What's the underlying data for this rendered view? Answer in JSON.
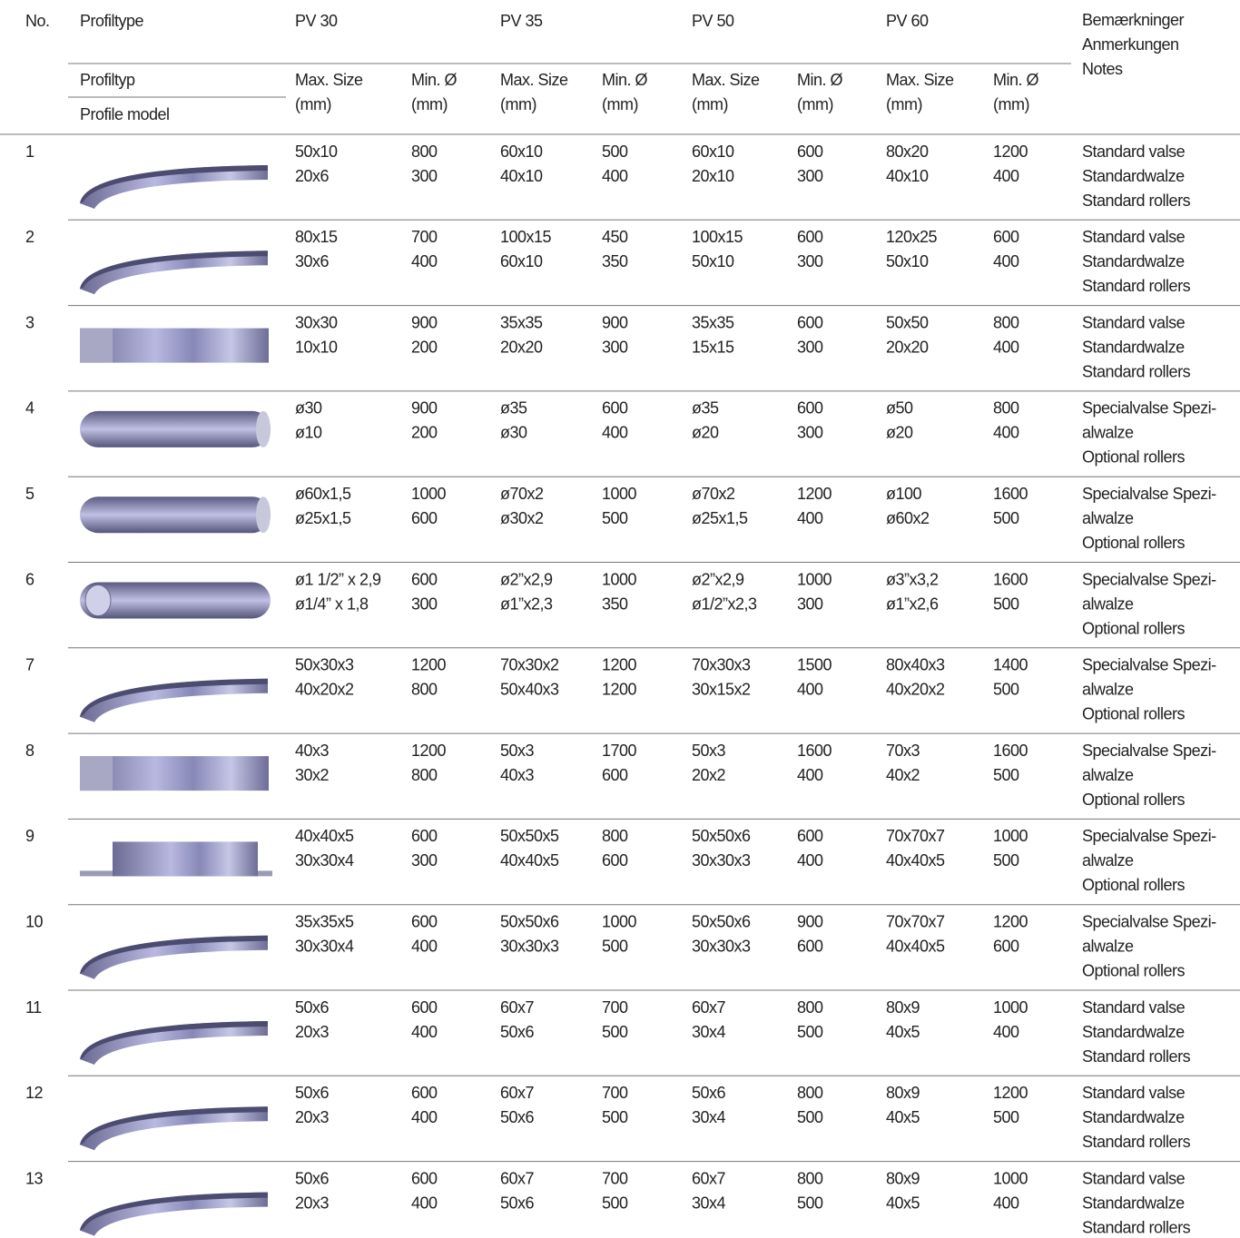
{
  "header": {
    "no": "No.",
    "profiltype": "Profiltype",
    "profiltyp": "Profiltyp",
    "profile_model": "Profile model",
    "models": [
      "PV 30",
      "PV 35",
      "PV 50",
      "PV 60"
    ],
    "max_size": [
      "Max. Size",
      "(mm)"
    ],
    "min_d": [
      "Min. Ø",
      "(mm)"
    ],
    "notes": [
      "Bemærkninger",
      "Anmerkungen",
      "Notes"
    ]
  },
  "rows": [
    {
      "no": "1",
      "cells": [
        [
          "50x10",
          "20x6"
        ],
        [
          "800",
          "300"
        ],
        [
          "60x10",
          "40x10"
        ],
        [
          "500",
          "400"
        ],
        [
          "60x10",
          "20x10"
        ],
        [
          "600",
          "300"
        ],
        [
          "80x20",
          "40x10"
        ],
        [
          "1200",
          "400"
        ]
      ],
      "notes": [
        "Standard valse",
        "Standardwalze",
        "Standard rollers"
      ]
    },
    {
      "no": "2",
      "cells": [
        [
          "80x15",
          "30x6"
        ],
        [
          "700",
          "400"
        ],
        [
          "100x15",
          "60x10"
        ],
        [
          "450",
          "350"
        ],
        [
          "100x15",
          "50x10"
        ],
        [
          "600",
          "300"
        ],
        [
          "120x25",
          "50x10"
        ],
        [
          "600",
          "400"
        ]
      ],
      "notes": [
        "Standard valse",
        "Standardwalze",
        "Standard rollers"
      ]
    },
    {
      "no": "3",
      "cells": [
        [
          "30x30",
          "10x10"
        ],
        [
          "900",
          "200"
        ],
        [
          "35x35",
          "20x20"
        ],
        [
          "900",
          "300"
        ],
        [
          "35x35",
          "15x15"
        ],
        [
          "600",
          "300"
        ],
        [
          "50x50",
          "20x20"
        ],
        [
          "800",
          "400"
        ]
      ],
      "notes": [
        "Standard valse",
        "Standardwalze",
        "Standard rollers"
      ]
    },
    {
      "no": "4",
      "cells": [
        [
          "ø30",
          "ø10"
        ],
        [
          "900",
          "200"
        ],
        [
          "ø35",
          "ø30"
        ],
        [
          "600",
          "400"
        ],
        [
          "ø35",
          "ø20"
        ],
        [
          "600",
          "300"
        ],
        [
          "ø50",
          "ø20"
        ],
        [
          "800",
          "400"
        ]
      ],
      "notes": [
        "Specialvalse Spezi-",
        "alwalze",
        "Optional rollers"
      ]
    },
    {
      "no": "5",
      "cells": [
        [
          "ø60x1,5",
          "ø25x1,5"
        ],
        [
          "1000",
          "600"
        ],
        [
          "ø70x2",
          "ø30x2"
        ],
        [
          "1000",
          "500"
        ],
        [
          "ø70x2",
          "ø25x1,5"
        ],
        [
          "1200",
          "400"
        ],
        [
          "ø100",
          "ø60x2"
        ],
        [
          "1600",
          "500"
        ]
      ],
      "notes": [
        "Specialvalse Spezi-",
        "alwalze",
        "Optional rollers"
      ]
    },
    {
      "no": "6",
      "cells": [
        [
          "ø1 1/2” x 2,9",
          "ø1/4” x 1,8"
        ],
        [
          "600",
          "300"
        ],
        [
          "ø2”x2,9",
          "ø1”x2,3"
        ],
        [
          "1000",
          "350"
        ],
        [
          "ø2”x2,9",
          "ø1/2”x2,3"
        ],
        [
          "1000",
          "300"
        ],
        [
          "ø3”x3,2",
          "ø1”x2,6"
        ],
        [
          "1600",
          "500"
        ]
      ],
      "notes": [
        "Specialvalse Spezi-",
        "alwalze",
        "Optional rollers"
      ]
    },
    {
      "no": "7",
      "cells": [
        [
          "50x30x3",
          "40x20x2"
        ],
        [
          "1200",
          "800"
        ],
        [
          "70x30x2",
          "50x40x3"
        ],
        [
          "1200",
          "1200"
        ],
        [
          "70x30x3",
          "30x15x2"
        ],
        [
          "1500",
          "400"
        ],
        [
          "80x40x3",
          "40x20x2"
        ],
        [
          "1400",
          "500"
        ]
      ],
      "notes": [
        "Specialvalse Spezi-",
        "alwalze",
        "Optional rollers"
      ]
    },
    {
      "no": "8",
      "cells": [
        [
          "40x3",
          "30x2"
        ],
        [
          "1200",
          "800"
        ],
        [
          "50x3",
          "40x3"
        ],
        [
          "1700",
          "600"
        ],
        [
          "50x3",
          "20x2"
        ],
        [
          "1600",
          "400"
        ],
        [
          "70x3",
          "40x2"
        ],
        [
          "1600",
          "500"
        ]
      ],
      "notes": [
        "Specialvalse Spezi-",
        "alwalze",
        "Optional rollers"
      ]
    },
    {
      "no": "9",
      "cells": [
        [
          "40x40x5",
          "30x30x4"
        ],
        [
          "600",
          "300"
        ],
        [
          "50x50x5",
          "40x40x5"
        ],
        [
          "800",
          "600"
        ],
        [
          "50x50x6",
          "30x30x3"
        ],
        [
          "600",
          "400"
        ],
        [
          "70x70x7",
          "40x40x5"
        ],
        [
          "1000",
          "500"
        ]
      ],
      "notes": [
        "Specialvalse Spezi-",
        "alwalze",
        "Optional rollers"
      ]
    },
    {
      "no": "10",
      "cells": [
        [
          "35x35x5",
          "30x30x4"
        ],
        [
          "600",
          "400"
        ],
        [
          "50x50x6",
          "30x30x3"
        ],
        [
          "1000",
          "500"
        ],
        [
          "50x50x6",
          "30x30x3"
        ],
        [
          "900",
          "600"
        ],
        [
          "70x70x7",
          "40x40x5"
        ],
        [
          "1200",
          "600"
        ]
      ],
      "notes": [
        "Specialvalse Spezi-",
        "alwalze",
        "Optional rollers"
      ]
    },
    {
      "no": "11",
      "cells": [
        [
          "50x6",
          "20x3"
        ],
        [
          "600",
          "400"
        ],
        [
          "60x7",
          "50x6"
        ],
        [
          "700",
          "500"
        ],
        [
          "60x7",
          "30x4"
        ],
        [
          "800",
          "500"
        ],
        [
          "80x9",
          "40x5"
        ],
        [
          "1000",
          "400"
        ]
      ],
      "notes": [
        "Standard valse",
        "Standardwalze",
        "Standard rollers"
      ]
    },
    {
      "no": "12",
      "cells": [
        [
          "50x6",
          "20x3"
        ],
        [
          "600",
          "400"
        ],
        [
          "60x7",
          "50x6"
        ],
        [
          "700",
          "500"
        ],
        [
          "50x6",
          "30x4"
        ],
        [
          "800",
          "500"
        ],
        [
          "80x9",
          "40x5"
        ],
        [
          "1200",
          "500"
        ]
      ],
      "notes": [
        "Standard valse",
        "Standardwalze",
        "Standard rollers"
      ]
    },
    {
      "no": "13",
      "cells": [
        [
          "50x6",
          "20x3"
        ],
        [
          "600",
          "400"
        ],
        [
          "60x7",
          "50x6"
        ],
        [
          "700",
          "500"
        ],
        [
          "60x7",
          "30x4"
        ],
        [
          "800",
          "500"
        ],
        [
          "80x9",
          "40x5"
        ],
        [
          "1000",
          "400"
        ]
      ],
      "notes": [
        "Standard valse",
        "Standardwalze",
        "Standard rollers"
      ]
    }
  ]
}
